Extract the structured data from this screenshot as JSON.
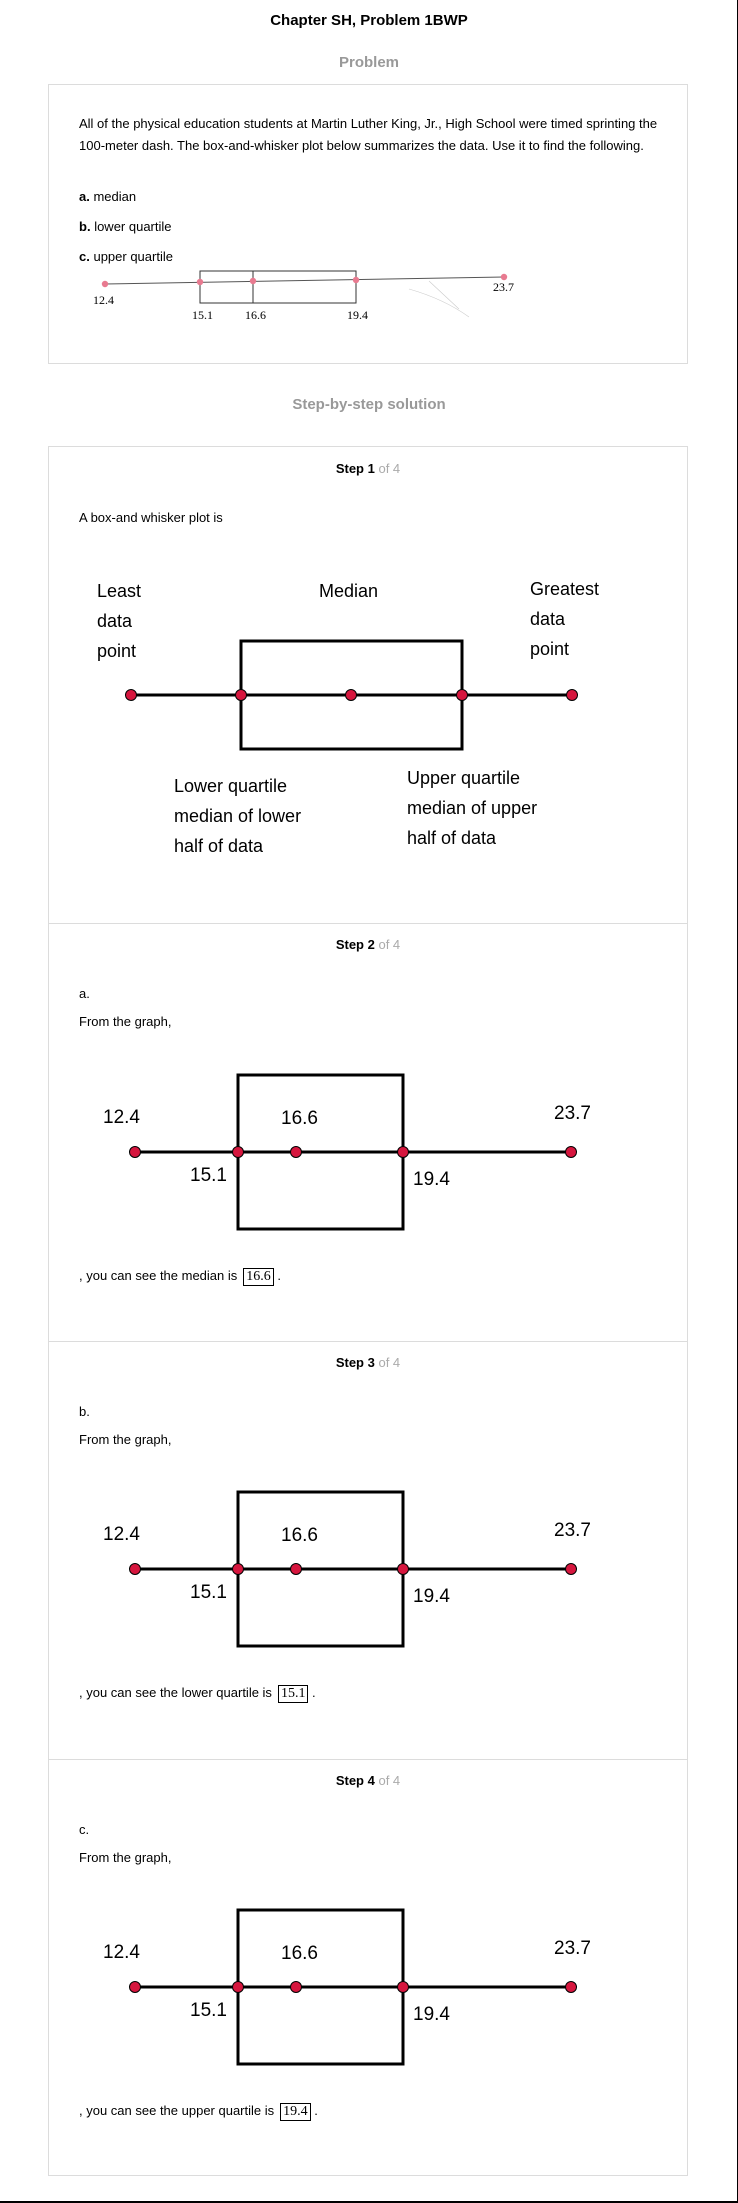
{
  "header": {
    "title": "Chapter SH, Problem 1BWP"
  },
  "problem": {
    "heading": "Problem",
    "text": "All of the physical education students at Martin Luther King, Jr., High School were timed sprinting the 100-meter dash. The box-and-whisker plot below summarizes the data. Use it to find the following.",
    "items": [
      {
        "letter": "a.",
        "label": "median"
      },
      {
        "letter": "b.",
        "label": "lower quartile"
      },
      {
        "letter": "c.",
        "label": "upper quartile"
      }
    ],
    "plot": {
      "min": "12.4",
      "q1": "15.1",
      "median": "16.6",
      "q3": "19.4",
      "max": "23.7"
    }
  },
  "solution": {
    "heading": "Step-by-step solution"
  },
  "steps": [
    {
      "label": "Step 1",
      "of": "of 4",
      "intro": "A box-and whisker plot is",
      "diagram": {
        "least": [
          "Least",
          "data",
          "point"
        ],
        "median": "Median",
        "greatest": [
          "Greatest",
          "data",
          "point"
        ],
        "lower": [
          "Lower quartile",
          "median of lower",
          "half of data"
        ],
        "upper": [
          "Upper quartile",
          "median of upper",
          "half of data"
        ]
      }
    },
    {
      "label": "Step 2",
      "of": "of 4",
      "letter": "a.",
      "from": "From the graph,",
      "conclusion": ", you can see the median is",
      "answer": "16.6"
    },
    {
      "label": "Step 3",
      "of": "of 4",
      "letter": "b.",
      "from": "From the graph,",
      "conclusion": ", you can see the lower quartile is",
      "answer": "15.1"
    },
    {
      "label": "Step 4",
      "of": "of 4",
      "letter": "c.",
      "from": "From the graph,",
      "conclusion": ", you can see the upper quartile is",
      "answer": "19.4"
    }
  ],
  "graph_values": {
    "min": "12.4",
    "q1": "15.1",
    "median": "16.6",
    "q3": "19.4",
    "max": "23.7"
  },
  "colors": {
    "dot": "#d6163e",
    "small_dot": "#e87a90",
    "muted": "#999999",
    "border": "#dcdcdc"
  }
}
